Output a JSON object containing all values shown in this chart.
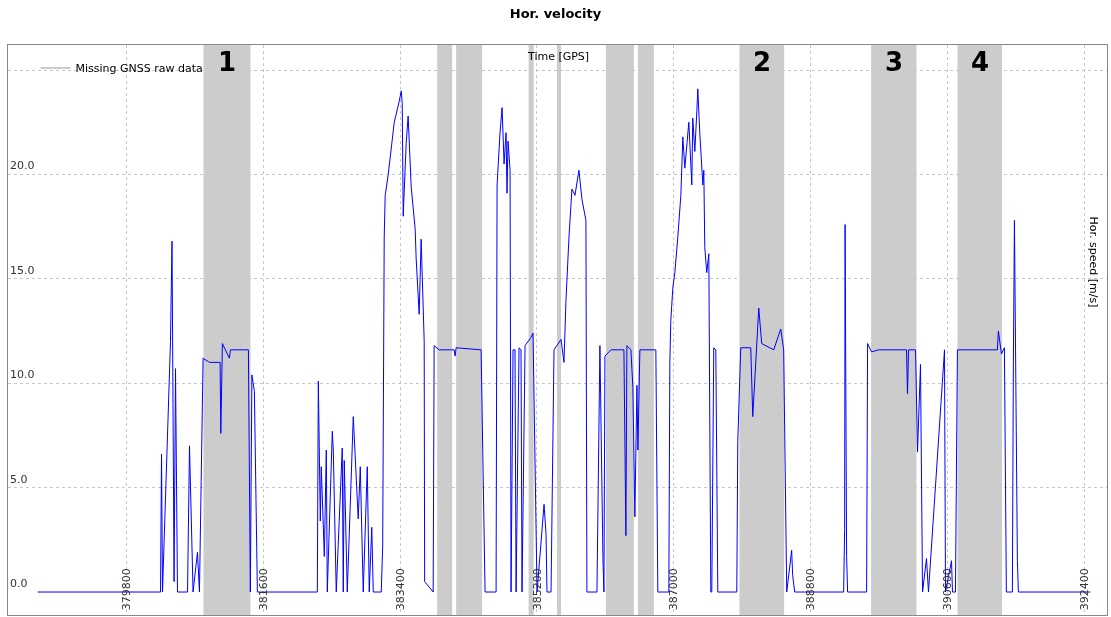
{
  "chart_data": {
    "type": "line",
    "title": "Hor. velocity",
    "xlabel": "Time [GPS]",
    "ylabel": "Hor. speed [m/s]",
    "legend_title": "Missing GNSS raw data",
    "legend": "top left",
    "grid": true,
    "marker": "none",
    "line_style": "solid",
    "xlim": [
      378240,
      392700
    ],
    "ylim": [
      -1.1,
      26.2
    ],
    "xticks": [
      379800,
      381600,
      383400,
      385200,
      387000,
      388800,
      390600,
      392400
    ],
    "yticks": [
      {
        "value": 0,
        "label": "0.0"
      },
      {
        "value": 5,
        "label": "5.0"
      },
      {
        "value": 10,
        "label": "10.0"
      },
      {
        "value": 15,
        "label": "15.0"
      },
      {
        "value": 20,
        "label": "20.0"
      },
      {
        "value": 25,
        "label": null
      }
    ],
    "bands": [
      {
        "axis": "x",
        "from": 380812,
        "to": 381430,
        "label": "1",
        "color": "#cccccc"
      },
      {
        "axis": "x",
        "from": 383887,
        "to": 384084,
        "color": "#cccccc"
      },
      {
        "axis": "x",
        "from": 384136,
        "to": 384478,
        "color": "#cccccc"
      },
      {
        "axis": "x",
        "from": 385090,
        "to": 385156,
        "color": "#cccccc"
      },
      {
        "axis": "x",
        "from": 385463,
        "to": 385516,
        "color": "#cccccc"
      },
      {
        "axis": "x",
        "from": 386107,
        "to": 386475,
        "color": "#cccccc"
      },
      {
        "axis": "x",
        "from": 386528,
        "to": 386738,
        "color": "#cccccc"
      },
      {
        "axis": "x",
        "from": 387864,
        "to": 388452,
        "label": "2",
        "color": "#cccccc"
      },
      {
        "axis": "x",
        "from": 389596,
        "to": 390193,
        "label": "3",
        "color": "#cccccc"
      },
      {
        "axis": "x",
        "from": 390733,
        "to": 391319,
        "label": "4",
        "color": "#cccccc"
      }
    ],
    "series": [
      {
        "color": "#0000ff",
        "x": [
          378631,
          380247,
          380260,
          380273,
          380378,
          380398,
          380425,
          380444,
          380470,
          380602,
          380628,
          380675,
          380733,
          380759,
          380807,
          380891,
          381031,
          381040,
          381061,
          381153,
          381167,
          381403,
          381429,
          381449,
          381482,
          381521,
          382310,
          382323,
          382349,
          382362,
          382402,
          382428,
          382441,
          382507,
          382520,
          382559,
          382638,
          382651,
          382664,
          382704,
          382783,
          382848,
          382875,
          382914,
          382967,
          382993,
          383026,
          383046,
          383151,
          383170,
          383190,
          383203,
          383243,
          383322,
          383387,
          383414,
          383427,
          383440,
          383479,
          383505,
          383545,
          383597,
          383610,
          383650,
          383676,
          383716,
          383722,
          383834,
          383847,
          383913,
          384110,
          384123,
          384136,
          384465,
          384517,
          384662,
          384675,
          384714,
          384741,
          384767,
          384793,
          384806,
          384819,
          384846,
          384859,
          384885,
          384911,
          384925,
          384964,
          384990,
          385003,
          385043,
          385122,
          385148,
          385201,
          385293,
          385319,
          385332,
          385385,
          385424,
          385516,
          385555,
          385582,
          385621,
          385660,
          385700,
          385752,
          385792,
          385844,
          385857,
          385989,
          386028,
          386068,
          386081,
          386094,
          386173,
          386344,
          386370,
          386383,
          386436,
          386462,
          386488,
          386515,
          386528,
          386554,
          386764,
          386790,
          386935,
          386948,
          386961,
          386988,
          387014,
          387053,
          387093,
          387119,
          387145,
          387198,
          387237,
          387250,
          387277,
          387303,
          387316,
          387342,
          387382,
          387395,
          387408,
          387434,
          387461,
          387487,
          387500,
          387526,
          387553,
          387579,
          387829,
          387842,
          387881,
          388013,
          388039,
          388118,
          388157,
          388315,
          388407,
          388446,
          388486,
          388551,
          388564,
          388591,
          389235,
          389248,
          389254,
          389274,
          389287,
          389537,
          389550,
          389602,
          389694,
          390062,
          390075,
          390089,
          390181,
          390207,
          390246,
          390273,
          390325,
          390351,
          390562,
          390575,
          390654,
          390667,
          390706,
          390732,
          391258,
          391271,
          391311,
          391350,
          391376,
          391455,
          391468,
          391482,
          391521,
          391534,
          392480
        ],
        "values": [
          0,
          0,
          6.6,
          0,
          12,
          16.8,
          0.5,
          10.7,
          0,
          0,
          7.0,
          0,
          1.9,
          0,
          11.2,
          11.0,
          11.0,
          7.6,
          11.9,
          11.2,
          11.6,
          11.6,
          0,
          10.4,
          9.6,
          0,
          0,
          10.1,
          3.4,
          6.0,
          1.7,
          6.8,
          0,
          7.7,
          6.8,
          0,
          6.9,
          0,
          6.3,
          0,
          8.4,
          3.5,
          6.0,
          0,
          6.0,
          0,
          3.1,
          0,
          0,
          2.2,
          17,
          19,
          20,
          22.5,
          23.5,
          24,
          23.4,
          18.0,
          21.5,
          22.8,
          19.4,
          17.4,
          16,
          13.3,
          16.9,
          12,
          0.5,
          0,
          11.8,
          11.6,
          11.6,
          11.3,
          11.7,
          11.6,
          0,
          0,
          19.5,
          22,
          23.2,
          20.5,
          22.0,
          19.1,
          21.6,
          20.2,
          0,
          11.6,
          11.6,
          0,
          11.7,
          11.6,
          0,
          11.8,
          12.2,
          12.4,
          0,
          4.2,
          2.8,
          0,
          0,
          11.6,
          12.1,
          11.0,
          14,
          17.0,
          19.3,
          19.0,
          20.2,
          18.8,
          17.8,
          0,
          0,
          11.8,
          1.6,
          0,
          11.3,
          11.6,
          11.6,
          2.7,
          11.8,
          11.6,
          9.8,
          3.6,
          9.9,
          6.8,
          11.6,
          11.6,
          0,
          0,
          11,
          13,
          14.6,
          15.3,
          17.0,
          19,
          21.8,
          20.3,
          22.5,
          19.5,
          22.7,
          21.1,
          23,
          24.1,
          22,
          19.5,
          20.2,
          16.5,
          15.3,
          16.2,
          0,
          0,
          11.7,
          11.6,
          0,
          0,
          7.2,
          11.7,
          11.7,
          8.4,
          13.6,
          11.9,
          11.6,
          12.6,
          11.6,
          0,
          2.0,
          0.8,
          0,
          0,
          3.0,
          17.6,
          1.7,
          0,
          0,
          11.9,
          11.5,
          11.6,
          11.6,
          9.5,
          11.6,
          11.6,
          6.7,
          10.9,
          0,
          1.6,
          0,
          11.6,
          0,
          1.5,
          0,
          0,
          11.6,
          11.6,
          12.5,
          11.4,
          11.7,
          0,
          0,
          10.9,
          17.8,
          1.5,
          0,
          0
        ]
      }
    ]
  }
}
